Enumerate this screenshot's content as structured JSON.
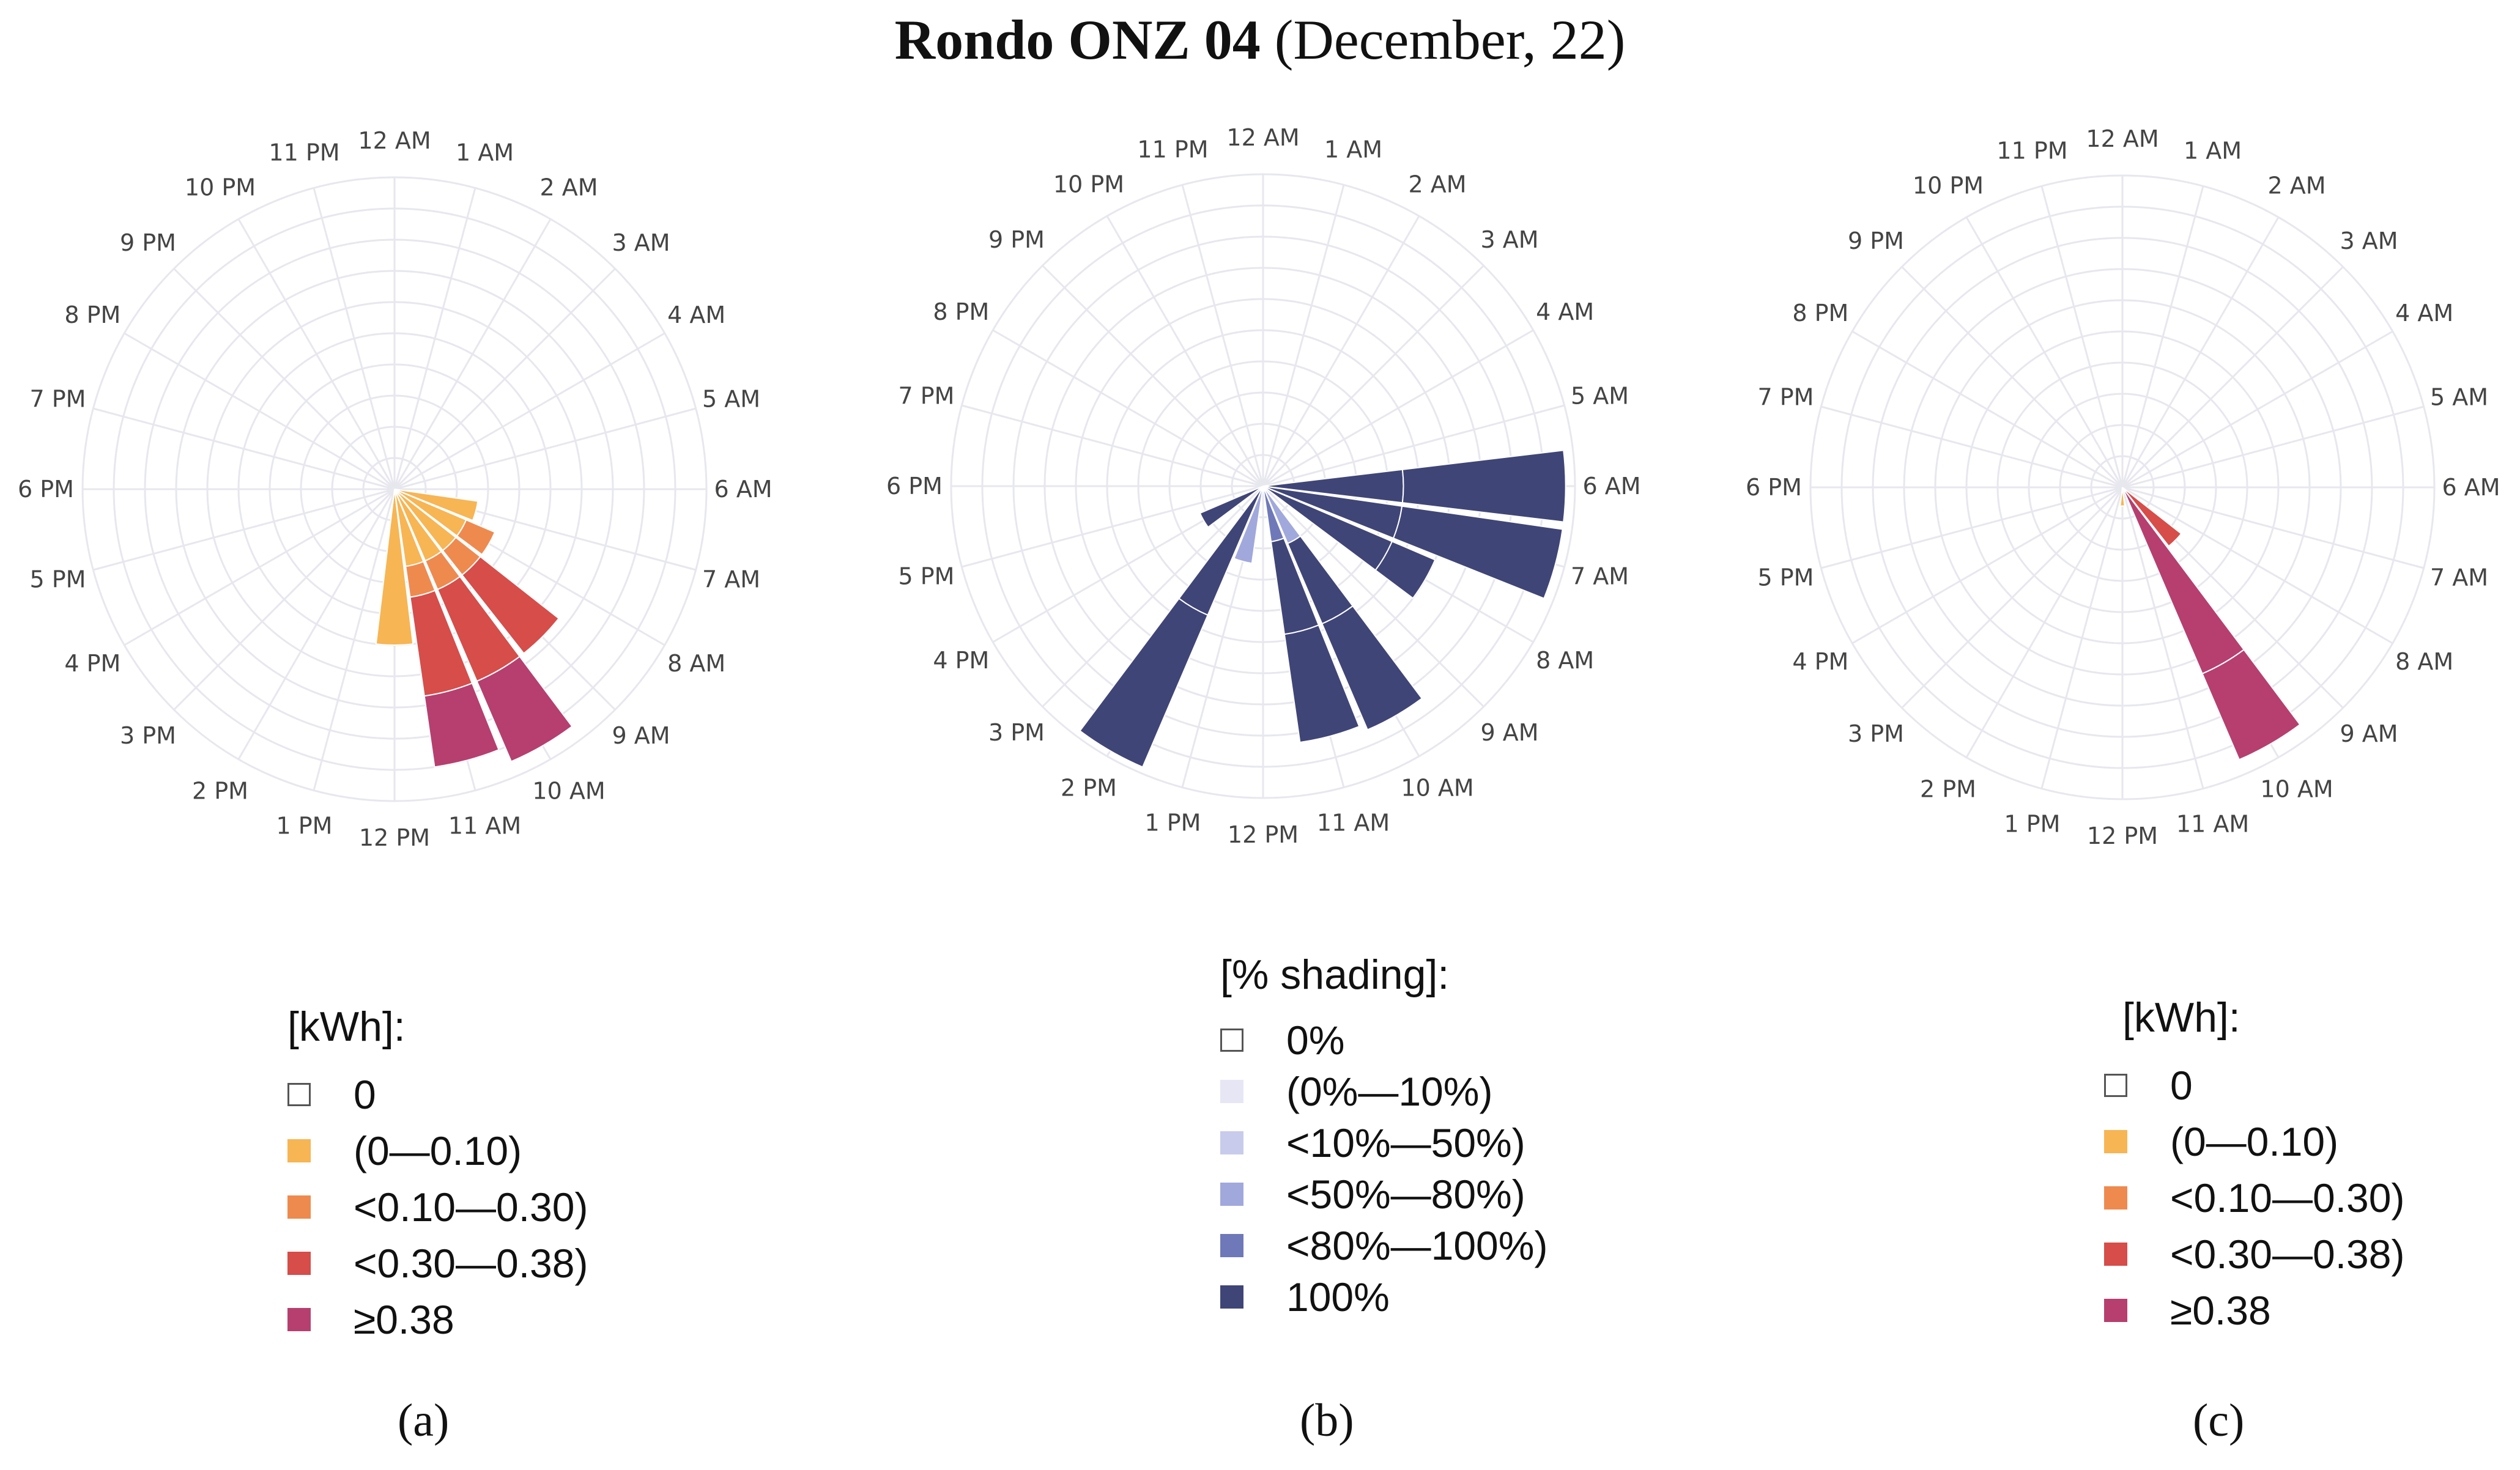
{
  "title": {
    "bold": "Rondo ONZ 04",
    "rest": " (December, 22)"
  },
  "hour_labels": [
    "12 AM",
    "1 AM",
    "2 AM",
    "3 AM",
    "4 AM",
    "5 AM",
    "6 AM",
    "7 AM",
    "8 AM",
    "9 AM",
    "10 AM",
    "11 AM",
    "12 PM",
    "1 PM",
    "2 PM",
    "3 PM",
    "4 PM",
    "5 PM",
    "6 PM",
    "7 PM",
    "8 PM",
    "9 PM",
    "10 PM",
    "11 PM"
  ],
  "colors": {
    "energy": [
      "#ffffff",
      "#f7b554",
      "#ef8a4f",
      "#d64d4a",
      "#b63f70"
    ],
    "shading": [
      "#ffffff",
      "#e6e6f5",
      "#c8cbec",
      "#a1a8dc",
      "#6f78b8",
      "#3f4577"
    ],
    "grid": "#e7e7ee"
  },
  "chart_data": [
    {
      "type": "barpolar",
      "panel": "(a)",
      "legend_title": "[kWh]:",
      "legend": [
        "0",
        "(0—0.10)",
        "<0.10—0.30)",
        "<0.30—0.38)",
        "≥0.38"
      ],
      "radial_range": [
        0,
        10
      ],
      "bars": [
        {
          "hour": 7,
          "stack": [
            [
              1,
              2.7
            ]
          ]
        },
        {
          "hour": 8,
          "stack": [
            [
              1,
              2.5
            ],
            [
              2,
              3.5
            ]
          ]
        },
        {
          "hour": 9,
          "stack": [
            [
              1,
              2.5
            ],
            [
              2,
              3.5
            ],
            [
              3,
              6.7
            ]
          ]
        },
        {
          "hour": 10,
          "stack": [
            [
              1,
              2.5
            ],
            [
              2,
              3.5
            ],
            [
              3,
              6.7
            ],
            [
              4,
              9.5
            ]
          ]
        },
        {
          "hour": 11,
          "stack": [
            [
              1,
              2.5
            ],
            [
              2,
              3.5
            ],
            [
              3,
              6.7
            ],
            [
              4,
              9.0
            ]
          ]
        },
        {
          "hour": 12,
          "stack": [
            [
              1,
              5.0
            ]
          ]
        }
      ]
    },
    {
      "type": "barpolar",
      "panel": "(b)",
      "legend_title": "[% shading]:",
      "legend": [
        "0%",
        "(0%—10%)",
        "<10%—50%)",
        "<50%—80%)",
        "<80%—100%)",
        "100%"
      ],
      "radial_range": [
        0,
        10
      ],
      "bars": [
        {
          "hour": 6,
          "stack": [
            [
              5,
              4.5
            ],
            [
              5,
              9.7
            ]
          ]
        },
        {
          "hour": 7,
          "stack": [
            [
              5,
              4.5
            ],
            [
              5,
              9.7
            ]
          ]
        },
        {
          "hour": 8,
          "stack": [
            [
              5,
              4.5
            ],
            [
              5,
              6.0
            ]
          ]
        },
        {
          "hour": 10,
          "stack": [
            [
              3,
              2.0
            ],
            [
              5,
              4.8
            ],
            [
              5,
              8.5
            ]
          ]
        },
        {
          "hour": 11,
          "stack": [
            [
              4,
              1.8
            ],
            [
              5,
              4.8
            ],
            [
              5,
              8.3
            ]
          ]
        },
        {
          "hour": 13,
          "stack": [
            [
              3,
              2.5
            ]
          ]
        },
        {
          "hour": 14,
          "stack": [
            [
              5,
              4.5
            ],
            [
              5,
              9.8
            ]
          ]
        },
        {
          "hour": 16,
          "stack": [
            [
              5,
              2.2
            ]
          ]
        }
      ]
    },
    {
      "type": "barpolar",
      "panel": "(c)",
      "legend_title": "[kWh]:",
      "legend": [
        "0",
        "(0—0.10)",
        "<0.10—0.30)",
        "<0.30—0.38)",
        "≥0.38"
      ],
      "radial_range": [
        0,
        10
      ],
      "bars": [
        {
          "hour": 9,
          "stack": [
            [
              3,
              2.4
            ]
          ]
        },
        {
          "hour": 10,
          "stack": [
            [
              4,
              6.5
            ],
            [
              4,
              9.5
            ]
          ]
        },
        {
          "hour": 12,
          "stack": [
            [
              1,
              0.6
            ]
          ]
        }
      ]
    }
  ]
}
